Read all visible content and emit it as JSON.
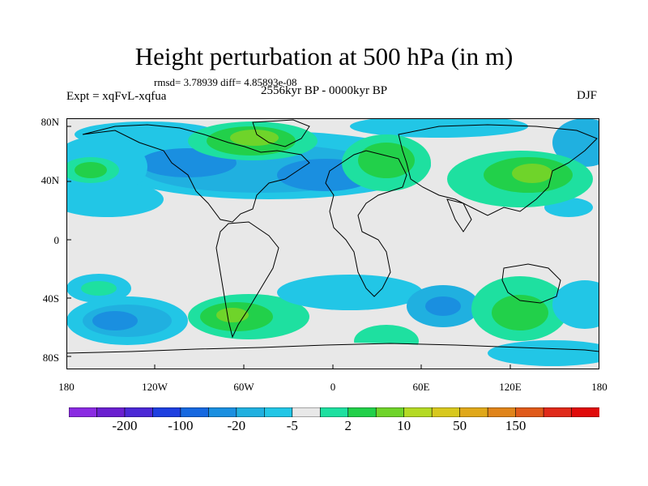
{
  "title": "Height perturbation at 500 hPa (in m)",
  "stats": "rmsd= 3.78939 diff= 4.85893e-08",
  "experiment": "Expt = xqFvL-xqfua",
  "period": "2556kyr BP - 0000kyr BP",
  "season": "DJF",
  "y_ticks": [
    "80N",
    "40N",
    "0",
    "40S",
    "80S"
  ],
  "x_ticks": [
    "180",
    "120W",
    "60W",
    "0",
    "60E",
    "120E",
    "180"
  ],
  "colorbar": {
    "colors": [
      "#8a2be2",
      "#6a1fd0",
      "#4b28d6",
      "#1e3fe0",
      "#1668e0",
      "#1a8fe0",
      "#20b0e0",
      "#22c6e6",
      "#e8e8e8",
      "#1ee0a0",
      "#22d04a",
      "#6fd42a",
      "#b4da24",
      "#d8c81e",
      "#e0a81a",
      "#e0841a",
      "#e05a1a",
      "#e02a1a",
      "#e00a0a"
    ],
    "labels": [
      "-200",
      "-100",
      "-20",
      "-5",
      "2",
      "10",
      "50",
      "150"
    ]
  }
}
